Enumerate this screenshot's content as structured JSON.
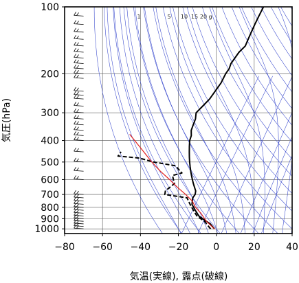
{
  "chart_data": {
    "type": "line",
    "chart_subtype": "skew-T log-P diagram",
    "xlabel": "気温(実線), 露点(破線)",
    "ylabel": "気圧(hPa)",
    "x_range": [
      -80,
      40
    ],
    "y_range_hPa": [
      1050,
      100
    ],
    "y_scale": "log",
    "x_ticks": [
      "−80",
      "−60",
      "−40",
      "−20",
      "0",
      "20",
      "40"
    ],
    "y_ticks": [
      "100",
      "200",
      "300",
      "400",
      "500",
      "600",
      "700",
      "800",
      "900",
      "1000"
    ],
    "mixing_ratio_labels": [
      "1",
      "5",
      "10",
      "15",
      "20",
      "g"
    ],
    "grid": true,
    "series": [
      {
        "style": "solid",
        "color": "#000000",
        "points": [
          [
            1000,
            -1
          ],
          [
            975,
            -3
          ],
          [
            950,
            -5
          ],
          [
            925,
            -8
          ],
          [
            900,
            -11
          ],
          [
            875,
            -14
          ],
          [
            850,
            -16
          ],
          [
            825,
            -18
          ],
          [
            800,
            -20
          ],
          [
            775,
            -22
          ],
          [
            750,
            -23
          ],
          [
            725,
            -24
          ],
          [
            700,
            -24
          ],
          [
            675,
            -25
          ],
          [
            650,
            -27
          ],
          [
            625,
            -29
          ],
          [
            600,
            -31
          ],
          [
            575,
            -33
          ],
          [
            550,
            -35
          ],
          [
            525,
            -37
          ],
          [
            500,
            -39
          ],
          [
            475,
            -41
          ],
          [
            450,
            -43
          ],
          [
            425,
            -45
          ],
          [
            400,
            -47
          ],
          [
            380,
            -48
          ],
          [
            360,
            -50
          ],
          [
            340,
            -51
          ],
          [
            320,
            -52
          ],
          [
            300,
            -54
          ],
          [
            280,
            -53
          ],
          [
            260,
            -52
          ],
          [
            240,
            -52
          ],
          [
            220,
            -52
          ],
          [
            200,
            -53
          ],
          [
            190,
            -53
          ],
          [
            180,
            -54
          ],
          [
            170,
            -54
          ],
          [
            160,
            -54
          ],
          [
            150,
            -53
          ],
          [
            140,
            -54
          ],
          [
            130,
            -55
          ],
          [
            120,
            -56
          ],
          [
            110,
            -57
          ],
          [
            100,
            -58
          ]
        ]
      },
      {
        "style": "dashed",
        "color": "#000000",
        "points": [
          [
            1000,
            -3
          ],
          [
            975,
            -5
          ],
          [
            950,
            -7
          ],
          [
            925,
            -9
          ],
          [
            900,
            -12
          ],
          [
            875,
            -15
          ],
          [
            850,
            -17
          ],
          [
            825,
            -19
          ],
          [
            800,
            -21
          ],
          [
            775,
            -23
          ],
          [
            750,
            -25
          ],
          [
            725,
            -27
          ],
          [
            700,
            -40
          ],
          [
            675,
            -41
          ],
          [
            650,
            -40
          ],
          [
            625,
            -39
          ],
          [
            600,
            -41
          ],
          [
            575,
            -43
          ],
          [
            560,
            -39
          ],
          [
            540,
            -42
          ],
          [
            520,
            -45
          ],
          [
            500,
            -58
          ],
          [
            480,
            -67
          ],
          [
            470,
            -79
          ],
          [
            460,
            -79
          ],
          [
            450,
            -79
          ]
        ]
      },
      {
        "style": "solid",
        "color": "#e02020",
        "points": [
          [
            1000,
            -1
          ],
          [
            925,
            -8
          ],
          [
            850,
            -14
          ],
          [
            800,
            -19
          ],
          [
            750,
            -23
          ],
          [
            700,
            -29
          ],
          [
            650,
            -36
          ],
          [
            600,
            -43
          ],
          [
            550,
            -51
          ],
          [
            500,
            -59
          ],
          [
            450,
            -67
          ],
          [
            400,
            -76
          ],
          [
            375,
            -81
          ]
        ]
      }
    ],
    "wind_barbs": {
      "x_position_data": -70,
      "levels_hPa": [
        1000,
        975,
        950,
        925,
        900,
        875,
        850,
        825,
        800,
        775,
        750,
        725,
        700,
        600,
        550,
        500,
        450,
        400,
        380,
        360,
        340,
        320,
        300,
        280,
        260,
        250,
        240,
        210,
        200,
        190,
        180,
        170,
        160,
        150,
        140,
        130,
        120,
        110,
        100
      ]
    },
    "colors": {
      "temperature": "#000000",
      "dewpoint": "#000000",
      "parcel": "#e02020",
      "background_lines": "#3344cc",
      "frame": "#000000",
      "grid": "#555555"
    }
  }
}
